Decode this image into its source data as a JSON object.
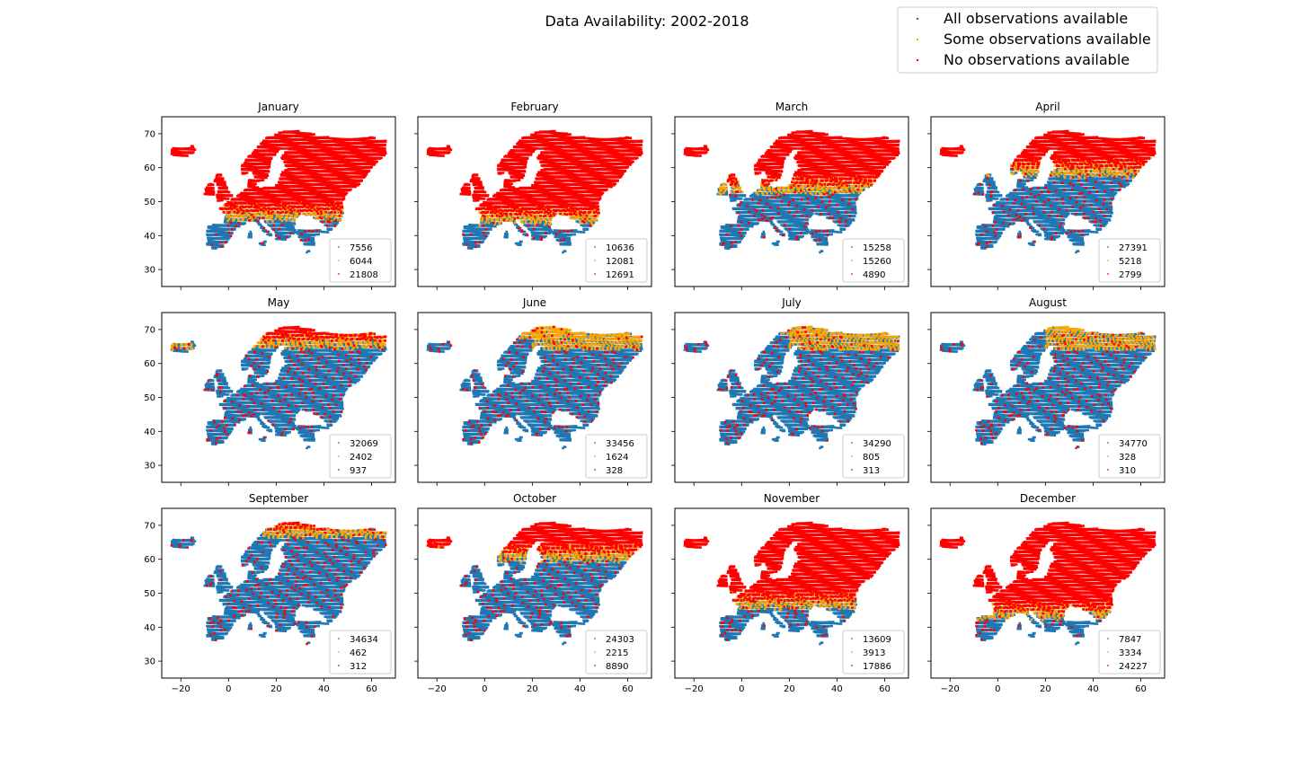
{
  "figure": {
    "title": "Data Availability: 2002-2018",
    "legend": {
      "placement": "top-right",
      "entries": [
        {
          "label": "All observations available",
          "color": "#1f77b4"
        },
        {
          "label": "Some observations available",
          "color": "#ffa500"
        },
        {
          "label": "No observations available",
          "color": "#ff0000"
        }
      ]
    }
  },
  "chart_data": [
    {
      "type": "scatter",
      "title": "January",
      "xlim": [
        -28,
        70
      ],
      "ylim": [
        25,
        75
      ],
      "xticks": [
        -20,
        0,
        20,
        40,
        60
      ],
      "yticks": [
        30,
        40,
        50,
        60,
        70
      ],
      "counts": [
        7556,
        6044,
        21808
      ],
      "legend_placement": "lower-right"
    },
    {
      "type": "scatter",
      "title": "February",
      "xlim": [
        -28,
        70
      ],
      "ylim": [
        25,
        75
      ],
      "xticks": [
        -20,
        0,
        20,
        40,
        60
      ],
      "yticks": [
        30,
        40,
        50,
        60,
        70
      ],
      "counts": [
        10636,
        12081,
        12691
      ],
      "legend_placement": "lower-right"
    },
    {
      "type": "scatter",
      "title": "March",
      "xlim": [
        -28,
        70
      ],
      "ylim": [
        25,
        75
      ],
      "xticks": [
        -20,
        0,
        20,
        40,
        60
      ],
      "yticks": [
        30,
        40,
        50,
        60,
        70
      ],
      "counts": [
        15258,
        15260,
        4890
      ],
      "legend_placement": "lower-right"
    },
    {
      "type": "scatter",
      "title": "April",
      "xlim": [
        -28,
        70
      ],
      "ylim": [
        25,
        75
      ],
      "xticks": [
        -20,
        0,
        20,
        40,
        60
      ],
      "yticks": [
        30,
        40,
        50,
        60,
        70
      ],
      "counts": [
        27391,
        5218,
        2799
      ],
      "legend_placement": "lower-right"
    },
    {
      "type": "scatter",
      "title": "May",
      "xlim": [
        -28,
        70
      ],
      "ylim": [
        25,
        75
      ],
      "xticks": [
        -20,
        0,
        20,
        40,
        60
      ],
      "yticks": [
        30,
        40,
        50,
        60,
        70
      ],
      "counts": [
        32069,
        2402,
        937
      ],
      "legend_placement": "lower-right"
    },
    {
      "type": "scatter",
      "title": "June",
      "xlim": [
        -28,
        70
      ],
      "ylim": [
        25,
        75
      ],
      "xticks": [
        -20,
        0,
        20,
        40,
        60
      ],
      "yticks": [
        30,
        40,
        50,
        60,
        70
      ],
      "counts": [
        33456,
        1624,
        328
      ],
      "legend_placement": "lower-right"
    },
    {
      "type": "scatter",
      "title": "July",
      "xlim": [
        -28,
        70
      ],
      "ylim": [
        25,
        75
      ],
      "xticks": [
        -20,
        0,
        20,
        40,
        60
      ],
      "yticks": [
        30,
        40,
        50,
        60,
        70
      ],
      "counts": [
        34290,
        805,
        313
      ],
      "legend_placement": "lower-right"
    },
    {
      "type": "scatter",
      "title": "August",
      "xlim": [
        -28,
        70
      ],
      "ylim": [
        25,
        75
      ],
      "xticks": [
        -20,
        0,
        20,
        40,
        60
      ],
      "yticks": [
        30,
        40,
        50,
        60,
        70
      ],
      "counts": [
        34770,
        328,
        310
      ],
      "legend_placement": "lower-right"
    },
    {
      "type": "scatter",
      "title": "September",
      "xlim": [
        -28,
        70
      ],
      "ylim": [
        25,
        75
      ],
      "xticks": [
        -20,
        0,
        20,
        40,
        60
      ],
      "yticks": [
        30,
        40,
        50,
        60,
        70
      ],
      "counts": [
        34634,
        462,
        312
      ],
      "legend_placement": "lower-right"
    },
    {
      "type": "scatter",
      "title": "October",
      "xlim": [
        -28,
        70
      ],
      "ylim": [
        25,
        75
      ],
      "xticks": [
        -20,
        0,
        20,
        40,
        60
      ],
      "yticks": [
        30,
        40,
        50,
        60,
        70
      ],
      "counts": [
        24303,
        2215,
        8890
      ],
      "legend_placement": "lower-right"
    },
    {
      "type": "scatter",
      "title": "November",
      "xlim": [
        -28,
        70
      ],
      "ylim": [
        25,
        75
      ],
      "xticks": [
        -20,
        0,
        20,
        40,
        60
      ],
      "yticks": [
        30,
        40,
        50,
        60,
        70
      ],
      "counts": [
        13609,
        3913,
        17886
      ],
      "legend_placement": "lower-right"
    },
    {
      "type": "scatter",
      "title": "December",
      "xlim": [
        -28,
        70
      ],
      "ylim": [
        25,
        75
      ],
      "xticks": [
        -20,
        0,
        20,
        40,
        60
      ],
      "yticks": [
        30,
        40,
        50,
        60,
        70
      ],
      "counts": [
        7847,
        3334,
        24227
      ],
      "legend_placement": "lower-right"
    }
  ]
}
